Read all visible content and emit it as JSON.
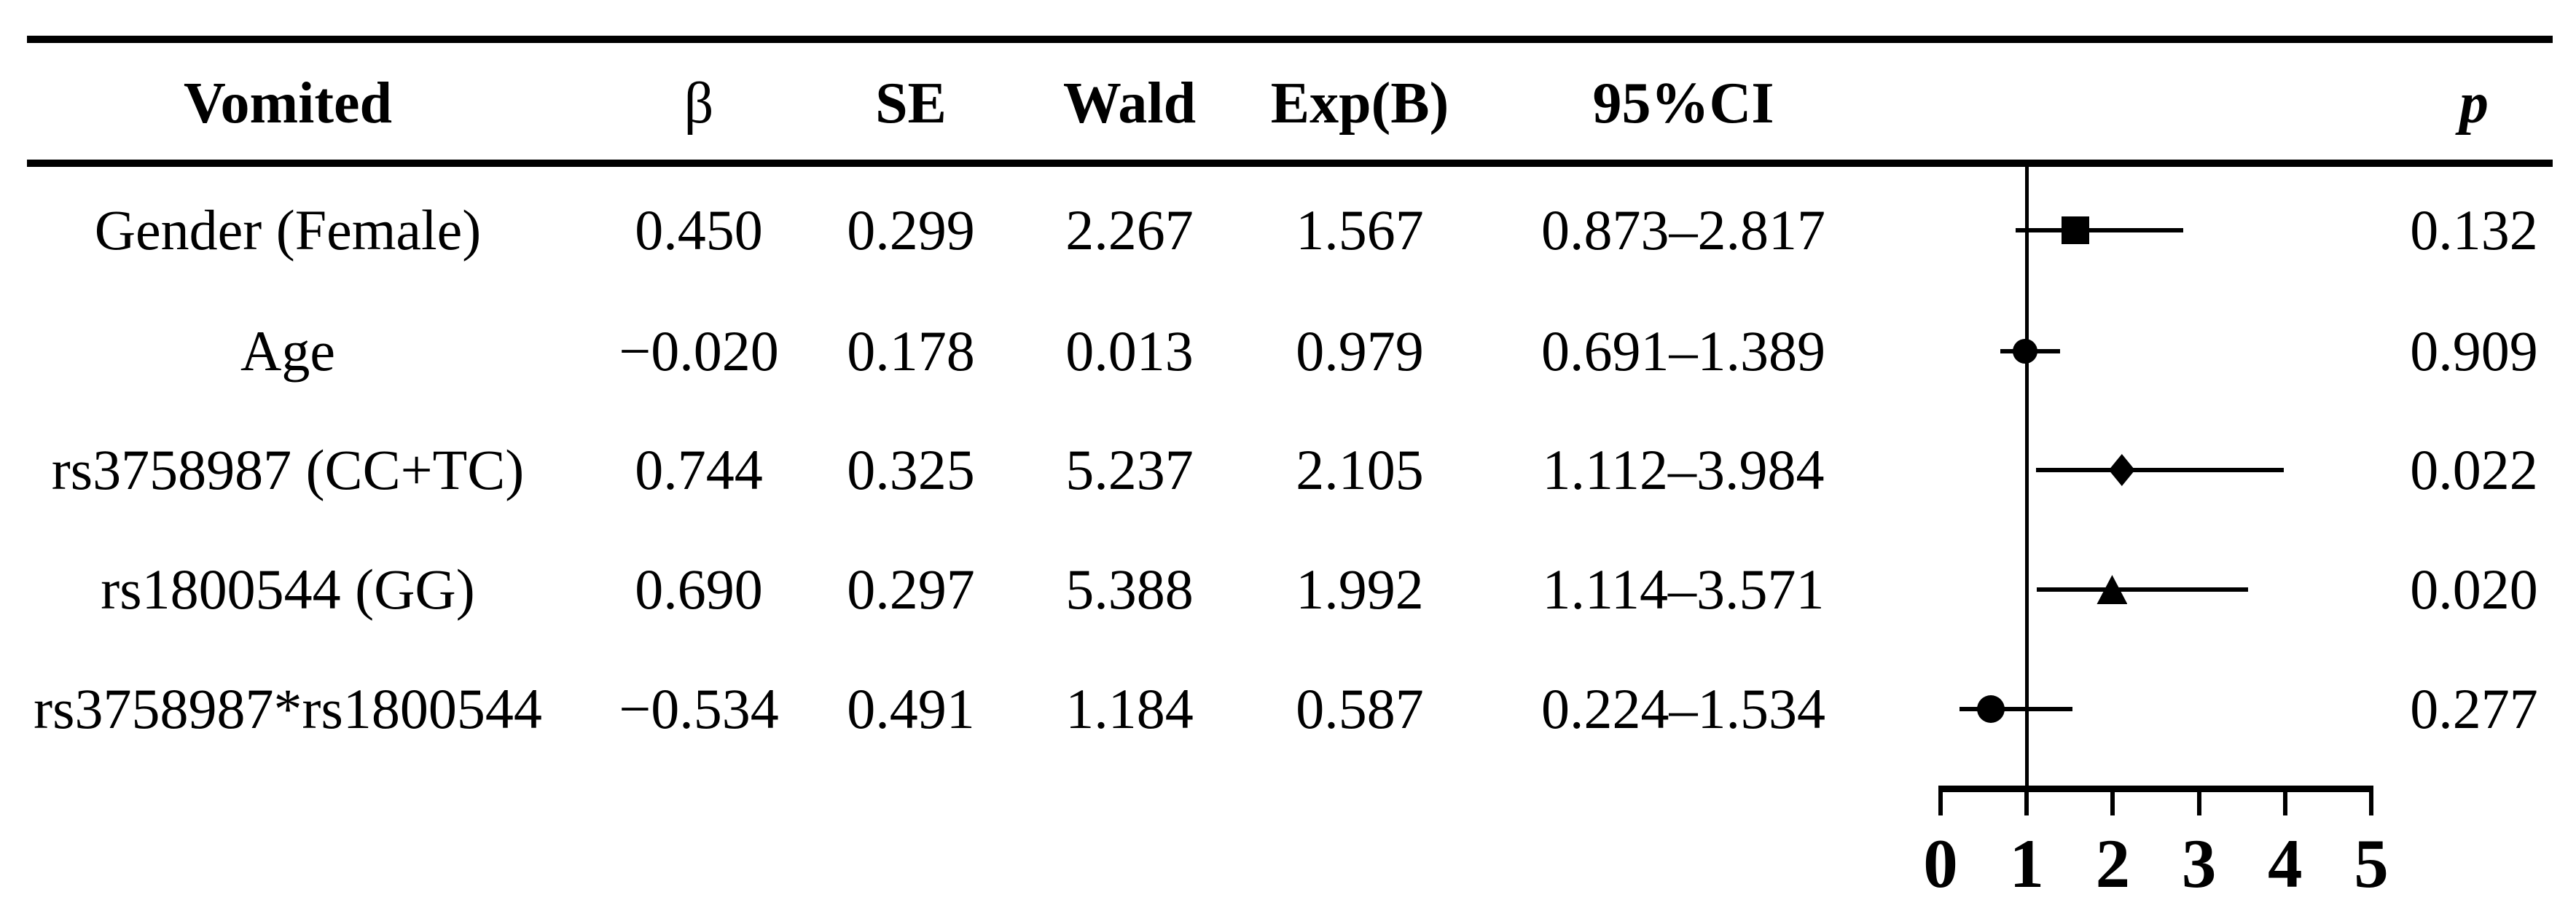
{
  "table": {
    "headers": {
      "label": "Vomited",
      "beta": "β",
      "se": "SE",
      "wald": "Wald",
      "exp_b": "Exp(B)",
      "ci": "95%CI",
      "p": "p"
    },
    "rows": [
      {
        "label": "Gender (Female)",
        "beta": "0.450",
        "se": "0.299",
        "wald": "2.267",
        "exp_b": "1.567",
        "ci": "0.873–2.817",
        "p": "0.132"
      },
      {
        "label": "Age",
        "beta": "−0.020",
        "se": "0.178",
        "wald": "0.013",
        "exp_b": "0.979",
        "ci": "0.691–1.389",
        "p": "0.909"
      },
      {
        "label": "rs3758987 (CC+TC)",
        "beta": "0.744",
        "se": "0.325",
        "wald": "5.237",
        "exp_b": "2.105",
        "ci": "1.112–3.984",
        "p": "0.022"
      },
      {
        "label": "rs1800544 (GG)",
        "beta": "0.690",
        "se": "0.297",
        "wald": "5.388",
        "exp_b": "1.992",
        "ci": "1.114–3.571",
        "p": "0.020"
      },
      {
        "label": "rs3758987*rs1800544",
        "beta": "−0.534",
        "se": "0.491",
        "wald": "1.184",
        "exp_b": "0.587",
        "ci": "0.224–1.534",
        "p": "0.277"
      }
    ]
  },
  "chart_data": {
    "type": "scatter",
    "subtype": "forest-plot",
    "title": "",
    "xlabel": "",
    "ylabel": "",
    "xlim": [
      0,
      5
    ],
    "x_ticks": [
      0,
      1,
      2,
      3,
      4,
      5
    ],
    "reference_line_x": 1,
    "grid": false,
    "legend": false,
    "series": [
      {
        "name": "Gender (Female)",
        "estimate": 1.567,
        "ci_low": 0.873,
        "ci_high": 2.817,
        "marker": "square"
      },
      {
        "name": "Age",
        "estimate": 0.979,
        "ci_low": 0.691,
        "ci_high": 1.389,
        "marker": "circle"
      },
      {
        "name": "rs3758987 (CC+TC)",
        "estimate": 2.105,
        "ci_low": 1.112,
        "ci_high": 3.984,
        "marker": "diamond"
      },
      {
        "name": "rs1800544 (GG)",
        "estimate": 1.992,
        "ci_low": 1.114,
        "ci_high": 3.571,
        "marker": "triangle"
      },
      {
        "name": "rs3758987*rs1800544",
        "estimate": 0.587,
        "ci_low": 0.224,
        "ci_high": 1.534,
        "marker": "circle-large"
      }
    ],
    "colors": {
      "marker": "#000000",
      "line": "#000000",
      "text": "#000000",
      "background": "#ffffff"
    }
  }
}
